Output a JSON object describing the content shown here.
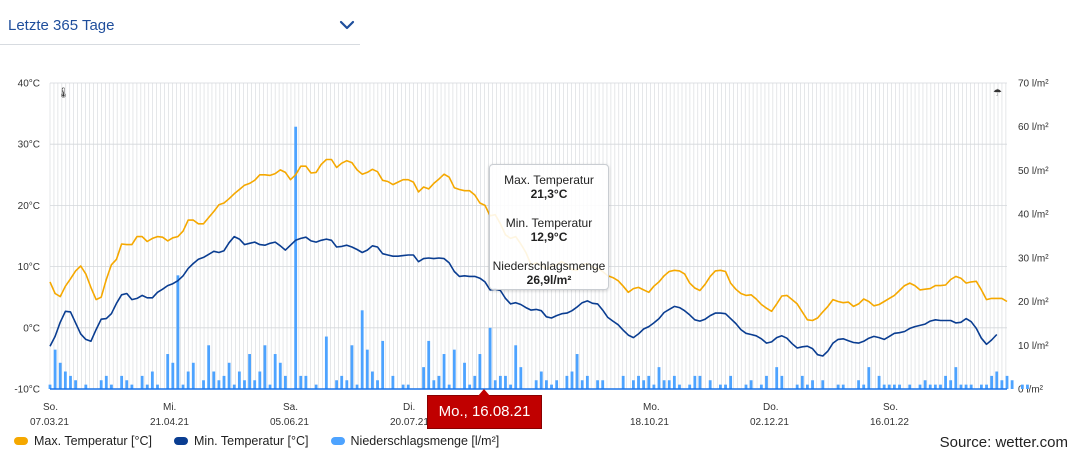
{
  "period_select": {
    "label": "Letzte 365 Tage",
    "icon": "chevron-down-icon"
  },
  "colors": {
    "max_temp": "#f5a800",
    "min_temp": "#0a3d91",
    "precip": "#4da3ff",
    "accent": "#1f4e9c",
    "flag": "#c00000"
  },
  "chart_data": {
    "type": "line",
    "left_axis": {
      "unit": "°C",
      "ylim": [
        -10,
        40
      ],
      "ticks": [
        "40°C",
        "30°C",
        "20°C",
        "10°C",
        "0°C",
        "-10°C"
      ]
    },
    "right_axis": {
      "unit": "l/m²",
      "ylim": [
        0,
        70
      ],
      "ticks": [
        "70 l/m²",
        "60 l/m²",
        "50 l/m²",
        "40 l/m²",
        "30 l/m²",
        "20 l/m²",
        "10 l/m²",
        "0 l/m²"
      ]
    },
    "x_ticks": [
      {
        "day": "So.",
        "date": "07.03.21"
      },
      {
        "day": "Mi.",
        "date": "21.04.21"
      },
      {
        "day": "Sa.",
        "date": "05.06.21"
      },
      {
        "day": "Di.",
        "date": "20.07.21"
      },
      {
        "day": "Mo.",
        "date": "18.10.21"
      },
      {
        "day": "Do.",
        "date": "02.12.21"
      },
      {
        "day": "So.",
        "date": "16.01.22"
      }
    ],
    "x_ticks_hidden_note": "",
    "series": [
      {
        "name": "Max.  Temperatur [°C]",
        "axis": "left",
        "type": "line",
        "values": [
          7.5,
          5.6,
          5.1,
          6.8,
          8.0,
          9.3,
          10.1,
          8.8,
          6.6,
          4.6,
          5.0,
          7.9,
          10.3,
          11.2,
          13.7,
          13.6,
          13.6,
          14.9,
          14.9,
          14.1,
          14.6,
          14.9,
          14.8,
          14.2,
          14.7,
          14.9,
          15.8,
          17.6,
          17.6,
          17.0,
          17.0,
          18.0,
          19.0,
          20.1,
          20.4,
          21.1,
          21.9,
          22.6,
          23.3,
          23.6,
          24.1,
          25.0,
          25.0,
          24.9,
          25.2,
          25.8,
          25.4,
          24.2,
          25.0,
          26.4,
          26.4,
          25.3,
          25.4,
          26.7,
          27.5,
          27.5,
          26.2,
          26.9,
          27.3,
          27.0,
          25.8,
          25.1,
          25.4,
          25.9,
          25.5,
          24.1,
          23.9,
          23.4,
          23.8,
          24.2,
          24.2,
          23.8,
          22.2,
          23.0,
          22.7,
          23.6,
          24.3,
          25.1,
          24.6,
          22.9,
          22.6,
          22.4,
          22.4,
          21.7,
          20.4,
          20.0,
          18.3,
          18.5,
          17.0,
          15.2,
          14.6,
          14.9,
          13.7,
          12.3,
          10.3,
          10.6,
          10.2,
          9.6,
          10.1,
          10.3,
          10.8,
          10.3,
          9.5,
          9.4,
          10.3,
          10.5,
          9.9,
          9.7,
          9.2,
          8.5,
          8.2,
          7.7,
          6.8,
          5.8,
          6.4,
          6.6,
          6.2,
          5.8,
          6.8,
          7.5,
          8.5,
          9.2,
          9.4,
          9.3,
          8.8,
          7.3,
          6.5,
          6.1,
          7.1,
          8.4,
          9.3,
          9.4,
          9.2,
          7.3,
          6.3,
          5.6,
          5.3,
          5.4,
          4.7,
          3.8,
          3.2,
          2.7,
          3.9,
          5.2,
          5.3,
          4.6,
          3.9,
          2.6,
          1.3,
          1.2,
          1.6,
          2.6,
          3.5,
          4.6,
          4.3,
          4.1,
          4.2,
          3.5,
          3.9,
          4.7,
          4.3,
          3.6,
          3.8,
          4.3,
          4.8,
          5.3,
          6.1,
          6.9,
          7.3,
          6.9,
          6.2,
          6.3,
          6.4,
          6.9,
          6.9,
          7.0,
          7.9,
          8.4,
          8.1,
          7.3,
          7.5,
          7.6,
          6.2,
          4.6,
          4.8,
          4.8,
          4.8,
          4.3
        ],
        "color": "#f5a800"
      },
      {
        "name": "Min.  Temperatur [°C]",
        "axis": "left",
        "type": "line",
        "values": [
          -3.0,
          -1.4,
          0.9,
          2.7,
          2.6,
          0.8,
          -1.0,
          -1.9,
          -2.2,
          -0.3,
          1.4,
          1.5,
          2.3,
          4.0,
          5.4,
          5.6,
          4.6,
          4.8,
          5.3,
          4.9,
          4.9,
          5.8,
          6.3,
          6.9,
          7.2,
          7.7,
          8.5,
          9.7,
          10.5,
          11.2,
          11.5,
          12.0,
          12.5,
          12.3,
          12.6,
          13.9,
          14.9,
          14.5,
          13.6,
          13.8,
          14.0,
          13.6,
          13.5,
          13.8,
          14.0,
          13.4,
          12.7,
          13.5,
          14.3,
          14.6,
          14.8,
          14.2,
          14.0,
          14.3,
          14.5,
          14.3,
          13.2,
          13.3,
          13.5,
          13.2,
          12.8,
          12.3,
          12.7,
          13.4,
          13.2,
          12.1,
          11.9,
          11.7,
          11.7,
          11.8,
          11.9,
          11.9,
          10.8,
          11.3,
          11.4,
          11.3,
          11.4,
          11.3,
          10.6,
          9.2,
          8.4,
          8.5,
          8.4,
          8.4,
          8.1,
          7.5,
          6.2,
          6.3,
          6.1,
          4.8,
          3.9,
          4.1,
          3.8,
          3.3,
          2.9,
          3.0,
          2.8,
          1.8,
          1.6,
          2.0,
          2.3,
          2.4,
          2.8,
          3.4,
          4.1,
          4.4,
          4.0,
          3.9,
          2.9,
          1.7,
          1.1,
          0.5,
          -0.4,
          -1.2,
          -1.6,
          -1.0,
          -0.2,
          0.2,
          0.8,
          1.5,
          2.5,
          3.0,
          3.5,
          3.3,
          2.8,
          2.1,
          1.3,
          1.1,
          1.4,
          2.0,
          2.4,
          2.4,
          2.3,
          1.5,
          0.7,
          -0.3,
          -0.9,
          -1.1,
          -1.3,
          -1.8,
          -2.5,
          -2.3,
          -1.6,
          -1.3,
          -1.7,
          -2.6,
          -3.3,
          -3.1,
          -3.0,
          -3.4,
          -4.4,
          -4.6,
          -3.8,
          -2.5,
          -1.9,
          -1.8,
          -2.1,
          -2.4,
          -2.5,
          -2.2,
          -1.7,
          -1.4,
          -1.6,
          -1.9,
          -1.4,
          -0.9,
          -0.8,
          -0.6,
          -0.1,
          0.2,
          0.4,
          0.6,
          1.1,
          1.3,
          1.2,
          1.2,
          1.2,
          0.8,
          0.9,
          1.5,
          1.0,
          -0.1,
          -1.7,
          -2.7,
          -2.0,
          -1.1
        ],
        "color": "#0a3d91"
      },
      {
        "name": "Niederschlagsmenge [l/m²]",
        "axis": "right",
        "type": "bar",
        "values": [
          1,
          9,
          6,
          4,
          3,
          2,
          0,
          1,
          0,
          0,
          2,
          3,
          1,
          0,
          3,
          2,
          1,
          0,
          3,
          1,
          4,
          1,
          0,
          8,
          6,
          26,
          1,
          4,
          6,
          0,
          2,
          10,
          4,
          2,
          3,
          6,
          1,
          4,
          2,
          8,
          2,
          4,
          10,
          1,
          8,
          6,
          3,
          0,
          60,
          3,
          3,
          0,
          1,
          0,
          12,
          0,
          2,
          3,
          2,
          10,
          1,
          18,
          9,
          4,
          2,
          11,
          0,
          3,
          0,
          1,
          1,
          0,
          0,
          5,
          11,
          2,
          3,
          8,
          1,
          9,
          0,
          6,
          1,
          3,
          8,
          0,
          14,
          2,
          3,
          3,
          1,
          10,
          5,
          0,
          0,
          2,
          4,
          2,
          1,
          2,
          0,
          3,
          4,
          8,
          2,
          3,
          0,
          2,
          2,
          0,
          0,
          0,
          3,
          0,
          2,
          3,
          2,
          3,
          1,
          5,
          2,
          2,
          3,
          1,
          0,
          1,
          3,
          3,
          0,
          2,
          0,
          1,
          1,
          3,
          0,
          0,
          1,
          2,
          0,
          1,
          3,
          0,
          5,
          3,
          0,
          0,
          1,
          3,
          1,
          2,
          0,
          2,
          0,
          0,
          1,
          1,
          0,
          0,
          2,
          1,
          5,
          0,
          3,
          1,
          1,
          1,
          1,
          0,
          1,
          0,
          1,
          2,
          1,
          1,
          1,
          3,
          2,
          5,
          1,
          1,
          1,
          0,
          1,
          1,
          3,
          4,
          2,
          3,
          2,
          0,
          1,
          1
        ],
        "color": "#4da3ff"
      }
    ],
    "tooltip": {
      "max_label": "Max.  Temperatur",
      "max_value": "21,3°C",
      "min_label": "Min.  Temperatur",
      "min_value": "12,9°C",
      "precip_label": "Niederschlagsmenge",
      "precip_value": "26,9l/m²"
    },
    "crosshair_date": "Mo., 16.08.21"
  },
  "legend": {
    "max": "Max.  Temperatur [°C]",
    "min": "Min.  Temperatur [°C]",
    "precip": "Niederschlagsmenge [l/m²]"
  },
  "source": "Source: wetter.com"
}
